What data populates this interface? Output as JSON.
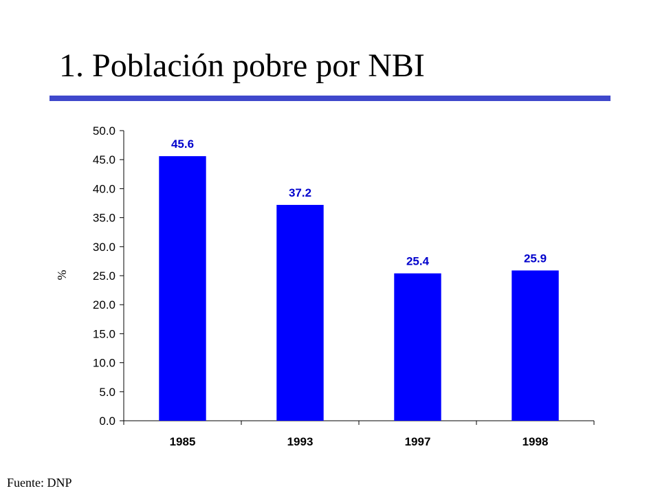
{
  "slide": {
    "title": "1. Población pobre por NBI",
    "source": "Fuente: DNP"
  },
  "colors": {
    "bar": "#0000ff",
    "data_label": "#0000cc",
    "title_rule": "#3f48cc",
    "axis": "#000000"
  },
  "chart_data": {
    "type": "bar",
    "categories": [
      "1985",
      "1993",
      "1997",
      "1998"
    ],
    "values": [
      45.6,
      37.2,
      25.4,
      25.9
    ],
    "data_labels": [
      "45.6",
      "37.2",
      "25.4",
      "25.9"
    ],
    "ylabel": "%",
    "ylim": [
      0,
      50
    ],
    "y_ticks": [
      "0.0",
      "5.0",
      "10.0",
      "15.0",
      "20.0",
      "25.0",
      "30.0",
      "35.0",
      "40.0",
      "45.0",
      "50.0"
    ],
    "grid": false,
    "legend": "none"
  }
}
